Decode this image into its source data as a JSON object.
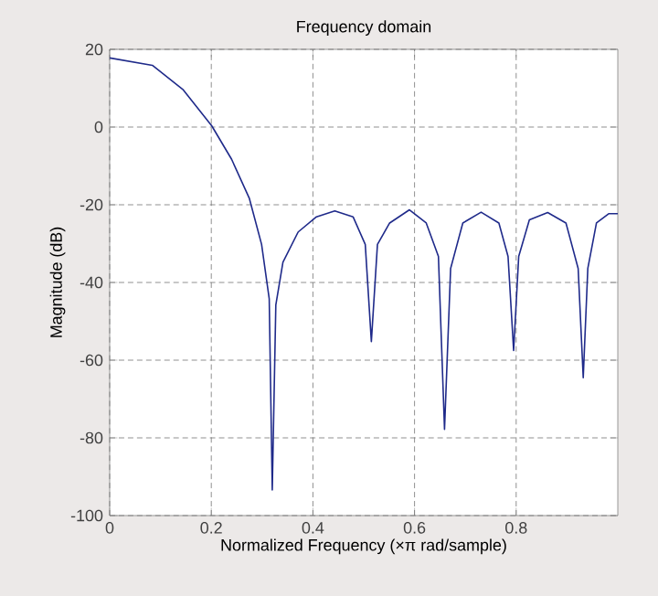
{
  "chart_data": {
    "type": "line",
    "title": "Frequency domain",
    "xlabel": "Normalized Frequency (×π rad/sample)",
    "ylabel": "Magnitude (dB)",
    "xlim": [
      0,
      1
    ],
    "ylim": [
      -100,
      20
    ],
    "xticks": [
      0,
      0.2,
      0.4,
      0.6,
      0.8
    ],
    "yticks": [
      -100,
      -80,
      -60,
      -40,
      -20,
      0,
      20
    ],
    "grid": true,
    "line_style": "solid",
    "series": [
      {
        "color": "#1f2a8a",
        "x": [
          0,
          0.084,
          0.144,
          0.201,
          0.24,
          0.275,
          0.299,
          0.314,
          0.32,
          0.327,
          0.341,
          0.371,
          0.407,
          0.443,
          0.479,
          0.503,
          0.515,
          0.527,
          0.551,
          0.59,
          0.623,
          0.647,
          0.659,
          0.671,
          0.695,
          0.731,
          0.766,
          0.784,
          0.795,
          0.805,
          0.826,
          0.862,
          0.898,
          0.922,
          0.932,
          0.941,
          0.958,
          0.982,
          1.0
        ],
        "values": [
          17.8,
          15.9,
          9.7,
          0.3,
          -8.3,
          -18.4,
          -30.2,
          -44.2,
          -93.4,
          -45.8,
          -34.8,
          -27,
          -23.1,
          -21.6,
          -23.1,
          -30.2,
          -55.2,
          -30.2,
          -24.7,
          -21.3,
          -24.7,
          -33.3,
          -77.8,
          -36.4,
          -24.7,
          -21.9,
          -24.7,
          -33.3,
          -57.5,
          -33.3,
          -23.9,
          -22,
          -24.7,
          -36.4,
          -64.5,
          -36.4,
          -24.7,
          -22.3,
          -22.3
        ]
      }
    ]
  }
}
